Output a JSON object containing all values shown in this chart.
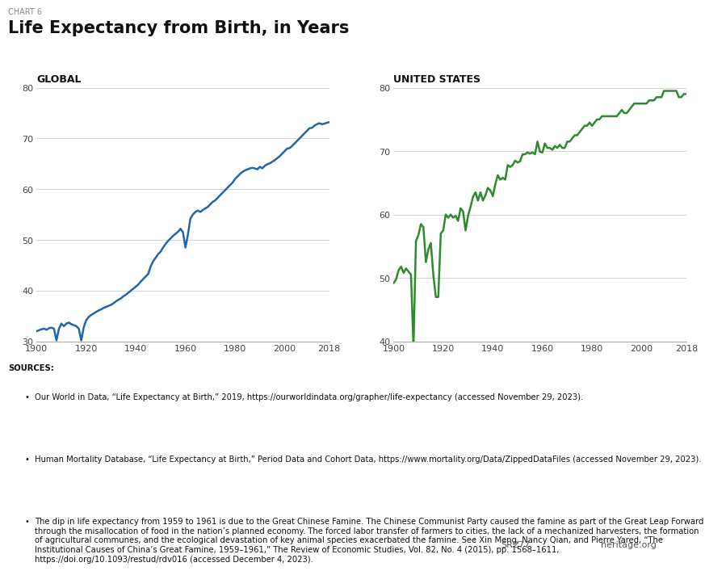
{
  "chart_label": "CHART 6",
  "title": "Life Expectancy from Birth, in Years",
  "left_panel_label": "GLOBAL",
  "right_panel_label": "UNITED STATES",
  "global_color": "#2166ac",
  "us_color": "#2d8a2d",
  "global_ylim": [
    30,
    80
  ],
  "us_ylim": [
    40,
    80
  ],
  "global_yticks": [
    30,
    40,
    50,
    60,
    70,
    80
  ],
  "us_yticks": [
    40,
    50,
    60,
    70,
    80
  ],
  "xlim": [
    1900,
    2018
  ],
  "xticks": [
    1900,
    1920,
    1940,
    1960,
    1980,
    2000,
    2018
  ],
  "line_width": 1.8,
  "background_color": "#ffffff",
  "grid_color": "#cccccc",
  "sources_label": "SOURCES:",
  "source_line1": "Our World in Data, “Life Expectancy at Birth,” 2019, https://ourworldindata.org/grapher/life-expectancy (accessed November 29, 2023).",
  "source_line2": "Human Mortality Database, “Life Expectancy at Birth,” Period Data and Cohort Data, https://www.mortality.org/Data/ZippedDataFiles (accessed November 29, 2023).",
  "source_line3_normal": "The dip in life expectancy from 1959 to 1961 is due to the Great Chinese Famine. The Chinese Communist Party caused the famine as part of the Great Leap Forward through the misallocation of food in the nation’s planned economy. The forced labor transfer of farmers to cities, the lack of a mechanized harvesters, the formation of agricultural communes, and the ecological devastation of key animal species exacerbated the famine. See Xin Meng, Nancy Qian, and Pierre Yared, “The Institutional Causes of China’s Great Famine, 1959–1961,” ",
  "source_line3_italic": "The Review of Economic Studies",
  "source_line3_end": ", Vol. 82, No. 4 (2015), pp. 1568–1611, https://doi.org/10.1093/restud/rdv016 (accessed December 4, 2023).",
  "footer_left": "SR277",
  "footer_right": "heritage.org",
  "global_data": {
    "years": [
      1900,
      1901,
      1902,
      1903,
      1904,
      1905,
      1906,
      1907,
      1908,
      1909,
      1910,
      1911,
      1912,
      1913,
      1914,
      1915,
      1916,
      1917,
      1918,
      1919,
      1920,
      1921,
      1922,
      1923,
      1924,
      1925,
      1926,
      1927,
      1928,
      1929,
      1930,
      1931,
      1932,
      1933,
      1934,
      1935,
      1936,
      1937,
      1938,
      1939,
      1940,
      1941,
      1942,
      1943,
      1944,
      1945,
      1946,
      1947,
      1948,
      1949,
      1950,
      1951,
      1952,
      1953,
      1954,
      1955,
      1956,
      1957,
      1958,
      1959,
      1960,
      1961,
      1962,
      1963,
      1964,
      1965,
      1966,
      1967,
      1968,
      1969,
      1970,
      1971,
      1972,
      1973,
      1974,
      1975,
      1976,
      1977,
      1978,
      1979,
      1980,
      1981,
      1982,
      1983,
      1984,
      1985,
      1986,
      1987,
      1988,
      1989,
      1990,
      1991,
      1992,
      1993,
      1994,
      1995,
      1996,
      1997,
      1998,
      1999,
      2000,
      2001,
      2002,
      2003,
      2004,
      2005,
      2006,
      2007,
      2008,
      2009,
      2010,
      2011,
      2012,
      2013,
      2014,
      2015,
      2016,
      2017,
      2018
    ],
    "values": [
      32.0,
      32.2,
      32.4,
      32.5,
      32.3,
      32.6,
      32.7,
      32.5,
      30.2,
      32.5,
      33.5,
      33.0,
      33.5,
      33.7,
      33.4,
      33.2,
      33.0,
      32.5,
      30.2,
      32.8,
      34.2,
      34.8,
      35.2,
      35.5,
      35.8,
      36.1,
      36.3,
      36.6,
      36.8,
      37.0,
      37.2,
      37.5,
      37.9,
      38.2,
      38.5,
      38.9,
      39.2,
      39.6,
      40.0,
      40.4,
      40.8,
      41.2,
      41.8,
      42.3,
      42.8,
      43.3,
      44.8,
      45.8,
      46.5,
      47.2,
      47.7,
      48.5,
      49.2,
      49.8,
      50.3,
      50.8,
      51.2,
      51.6,
      52.2,
      51.5,
      48.5,
      51.0,
      54.2,
      55.0,
      55.5,
      55.8,
      55.5,
      55.9,
      56.2,
      56.5,
      57.0,
      57.5,
      57.8,
      58.3,
      58.8,
      59.3,
      59.8,
      60.3,
      60.8,
      61.3,
      62.0,
      62.5,
      63.0,
      63.4,
      63.7,
      63.9,
      64.1,
      64.2,
      64.1,
      63.9,
      64.4,
      64.1,
      64.6,
      64.9,
      65.1,
      65.4,
      65.7,
      66.1,
      66.5,
      67.0,
      67.5,
      68.0,
      68.1,
      68.5,
      69.0,
      69.5,
      70.0,
      70.5,
      71.0,
      71.5,
      72.0,
      72.1,
      72.5,
      72.8,
      73.0,
      72.8,
      72.9,
      73.1,
      73.2
    ]
  },
  "us_data": {
    "years": [
      1900,
      1901,
      1902,
      1903,
      1904,
      1905,
      1906,
      1907,
      1908,
      1909,
      1910,
      1911,
      1912,
      1913,
      1914,
      1915,
      1916,
      1917,
      1918,
      1919,
      1920,
      1921,
      1922,
      1923,
      1924,
      1925,
      1926,
      1927,
      1928,
      1929,
      1930,
      1931,
      1932,
      1933,
      1934,
      1935,
      1936,
      1937,
      1938,
      1939,
      1940,
      1941,
      1942,
      1943,
      1944,
      1945,
      1946,
      1947,
      1948,
      1949,
      1950,
      1951,
      1952,
      1953,
      1954,
      1955,
      1956,
      1957,
      1958,
      1959,
      1960,
      1961,
      1962,
      1963,
      1964,
      1965,
      1966,
      1967,
      1968,
      1969,
      1970,
      1971,
      1972,
      1973,
      1974,
      1975,
      1976,
      1977,
      1978,
      1979,
      1980,
      1981,
      1982,
      1983,
      1984,
      1985,
      1986,
      1987,
      1988,
      1989,
      1990,
      1991,
      1992,
      1993,
      1994,
      1995,
      1996,
      1997,
      1998,
      1999,
      2000,
      2001,
      2002,
      2003,
      2004,
      2005,
      2006,
      2007,
      2008,
      2009,
      2010,
      2011,
      2012,
      2013,
      2014,
      2015,
      2016,
      2017,
      2018
    ],
    "values": [
      49.2,
      49.8,
      51.2,
      51.8,
      50.8,
      51.5,
      51.0,
      50.5,
      39.1,
      55.8,
      56.8,
      58.5,
      58.0,
      52.5,
      54.5,
      55.5,
      50.5,
      47.0,
      47.0,
      57.0,
      57.5,
      60.0,
      59.5,
      60.0,
      59.5,
      59.8,
      59.0,
      61.0,
      60.5,
      57.5,
      59.8,
      61.2,
      62.8,
      63.5,
      62.2,
      63.5,
      62.2,
      63.0,
      64.2,
      63.8,
      62.9,
      64.8,
      66.2,
      65.5,
      65.8,
      65.5,
      67.8,
      67.5,
      67.8,
      68.5,
      68.2,
      68.4,
      69.5,
      69.5,
      69.8,
      69.6,
      69.8,
      69.5,
      71.5,
      69.9,
      69.8,
      71.2,
      70.5,
      70.5,
      70.2,
      70.8,
      70.5,
      71.0,
      70.5,
      70.5,
      71.5,
      71.5,
      72.0,
      72.5,
      72.5,
      73.0,
      73.5,
      74.0,
      74.0,
      74.5,
      74.0,
      74.5,
      75.0,
      75.0,
      75.5,
      75.5,
      75.5,
      75.5,
      75.5,
      75.5,
      75.5,
      76.0,
      76.5,
      76.0,
      76.0,
      76.5,
      77.0,
      77.5,
      77.5,
      77.5,
      77.5,
      77.5,
      77.5,
      78.0,
      78.0,
      78.0,
      78.5,
      78.5,
      78.5,
      79.5,
      79.5,
      79.5,
      79.5,
      79.5,
      79.5,
      78.5,
      78.5,
      79.0,
      79.0
    ]
  }
}
